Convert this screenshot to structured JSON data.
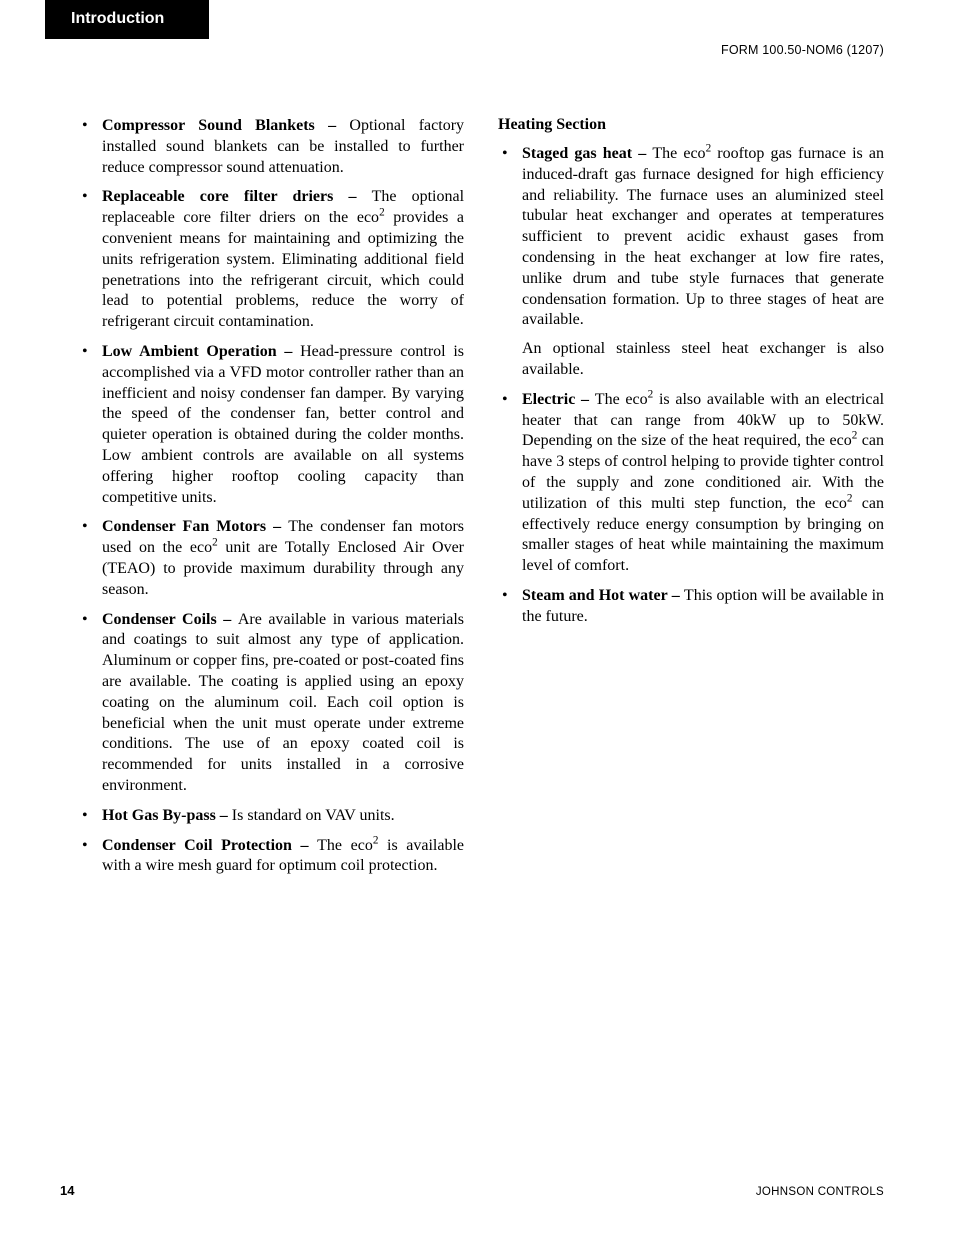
{
  "tab": "Introduction",
  "form_number": "FORM 100.50-NOM6 (1207)",
  "page_number": "14",
  "brand": "JOHNSON CONTROLS",
  "left_items": [
    {
      "title": "Compressor Sound Blankets",
      "body": "Optional factory installed sound blankets can be installed to further reduce compressor sound attenuation."
    },
    {
      "title": "Replaceable core filter driers",
      "body_parts": [
        "The optional replaceable core filter driers on the eco",
        " provides a convenient means for maintaining and optimizing the units refrigeration system. Eliminating additional field penetrations into the refrigerant circuit, which could lead to potential problems, reduce the worry of refrigerant circuit contamination."
      ]
    },
    {
      "title": "Low Ambient Operation",
      "body": "Head-pressure control is accomplished via a VFD motor controller rather than an inefficient and noisy condenser fan damper. By varying the speed of the condenser fan, better control and quieter operation is obtained during the colder months. Low ambient controls are available on all systems offering higher rooftop cooling capacity than competitive units."
    },
    {
      "title": "Condenser Fan Motors",
      "body_parts": [
        "The condenser fan motors used on the eco",
        " unit are Totally Enclosed Air Over (TEAO) to provide maximum durability through any season."
      ]
    },
    {
      "title": "Condenser Coils",
      "body": "Are available in various materials and coatings to suit almost any type of application. Aluminum or copper fins, pre-coated or post-coated fins are available. The coating is applied using an epoxy coating on the aluminum coil. Each coil option is beneficial when the unit must operate under extreme conditions.  The use of an epoxy coated coil is recommended for units installed in a corrosive environment."
    },
    {
      "title": "Hot Gas By-pass",
      "body": "Is standard on VAV units."
    },
    {
      "title": "Condenser Coil Protection",
      "body_parts": [
        "The eco",
        " is available with a wire mesh guard for optimum coil protection."
      ]
    }
  ],
  "heating_section_title": "Heating Section",
  "right_items": [
    {
      "title": "Staged gas heat",
      "body_parts": [
        "The eco",
        " rooftop gas furnace is an induced-draft gas furnace designed for high efficiency and reliability. The furnace uses an aluminized steel tubular heat exchanger and operates at temperatures sufficient to prevent acidic exhaust gases from condensing in the heat exchanger at low fire rates, unlike drum and tube style furnaces that generate condensation formation.  Up to three stages of heat are available."
      ],
      "follow": "An optional stainless steel heat exchanger is also available."
    },
    {
      "title": "Electric",
      "body_parts": [
        "The eco",
        " is also available with an electrical heater that can range from 40kW up to 50kW. Depending on the size of the heat required, the eco",
        " can have 3 steps of control helping to provide tighter control of the supply and zone conditioned air. With the utilization of this multi step function, the eco",
        " can effectively reduce energy consumption by bringing on smaller stages of heat while maintaining the maximum level of comfort."
      ]
    },
    {
      "title": "Steam and Hot water",
      "body": "This option will be available in the future."
    }
  ]
}
